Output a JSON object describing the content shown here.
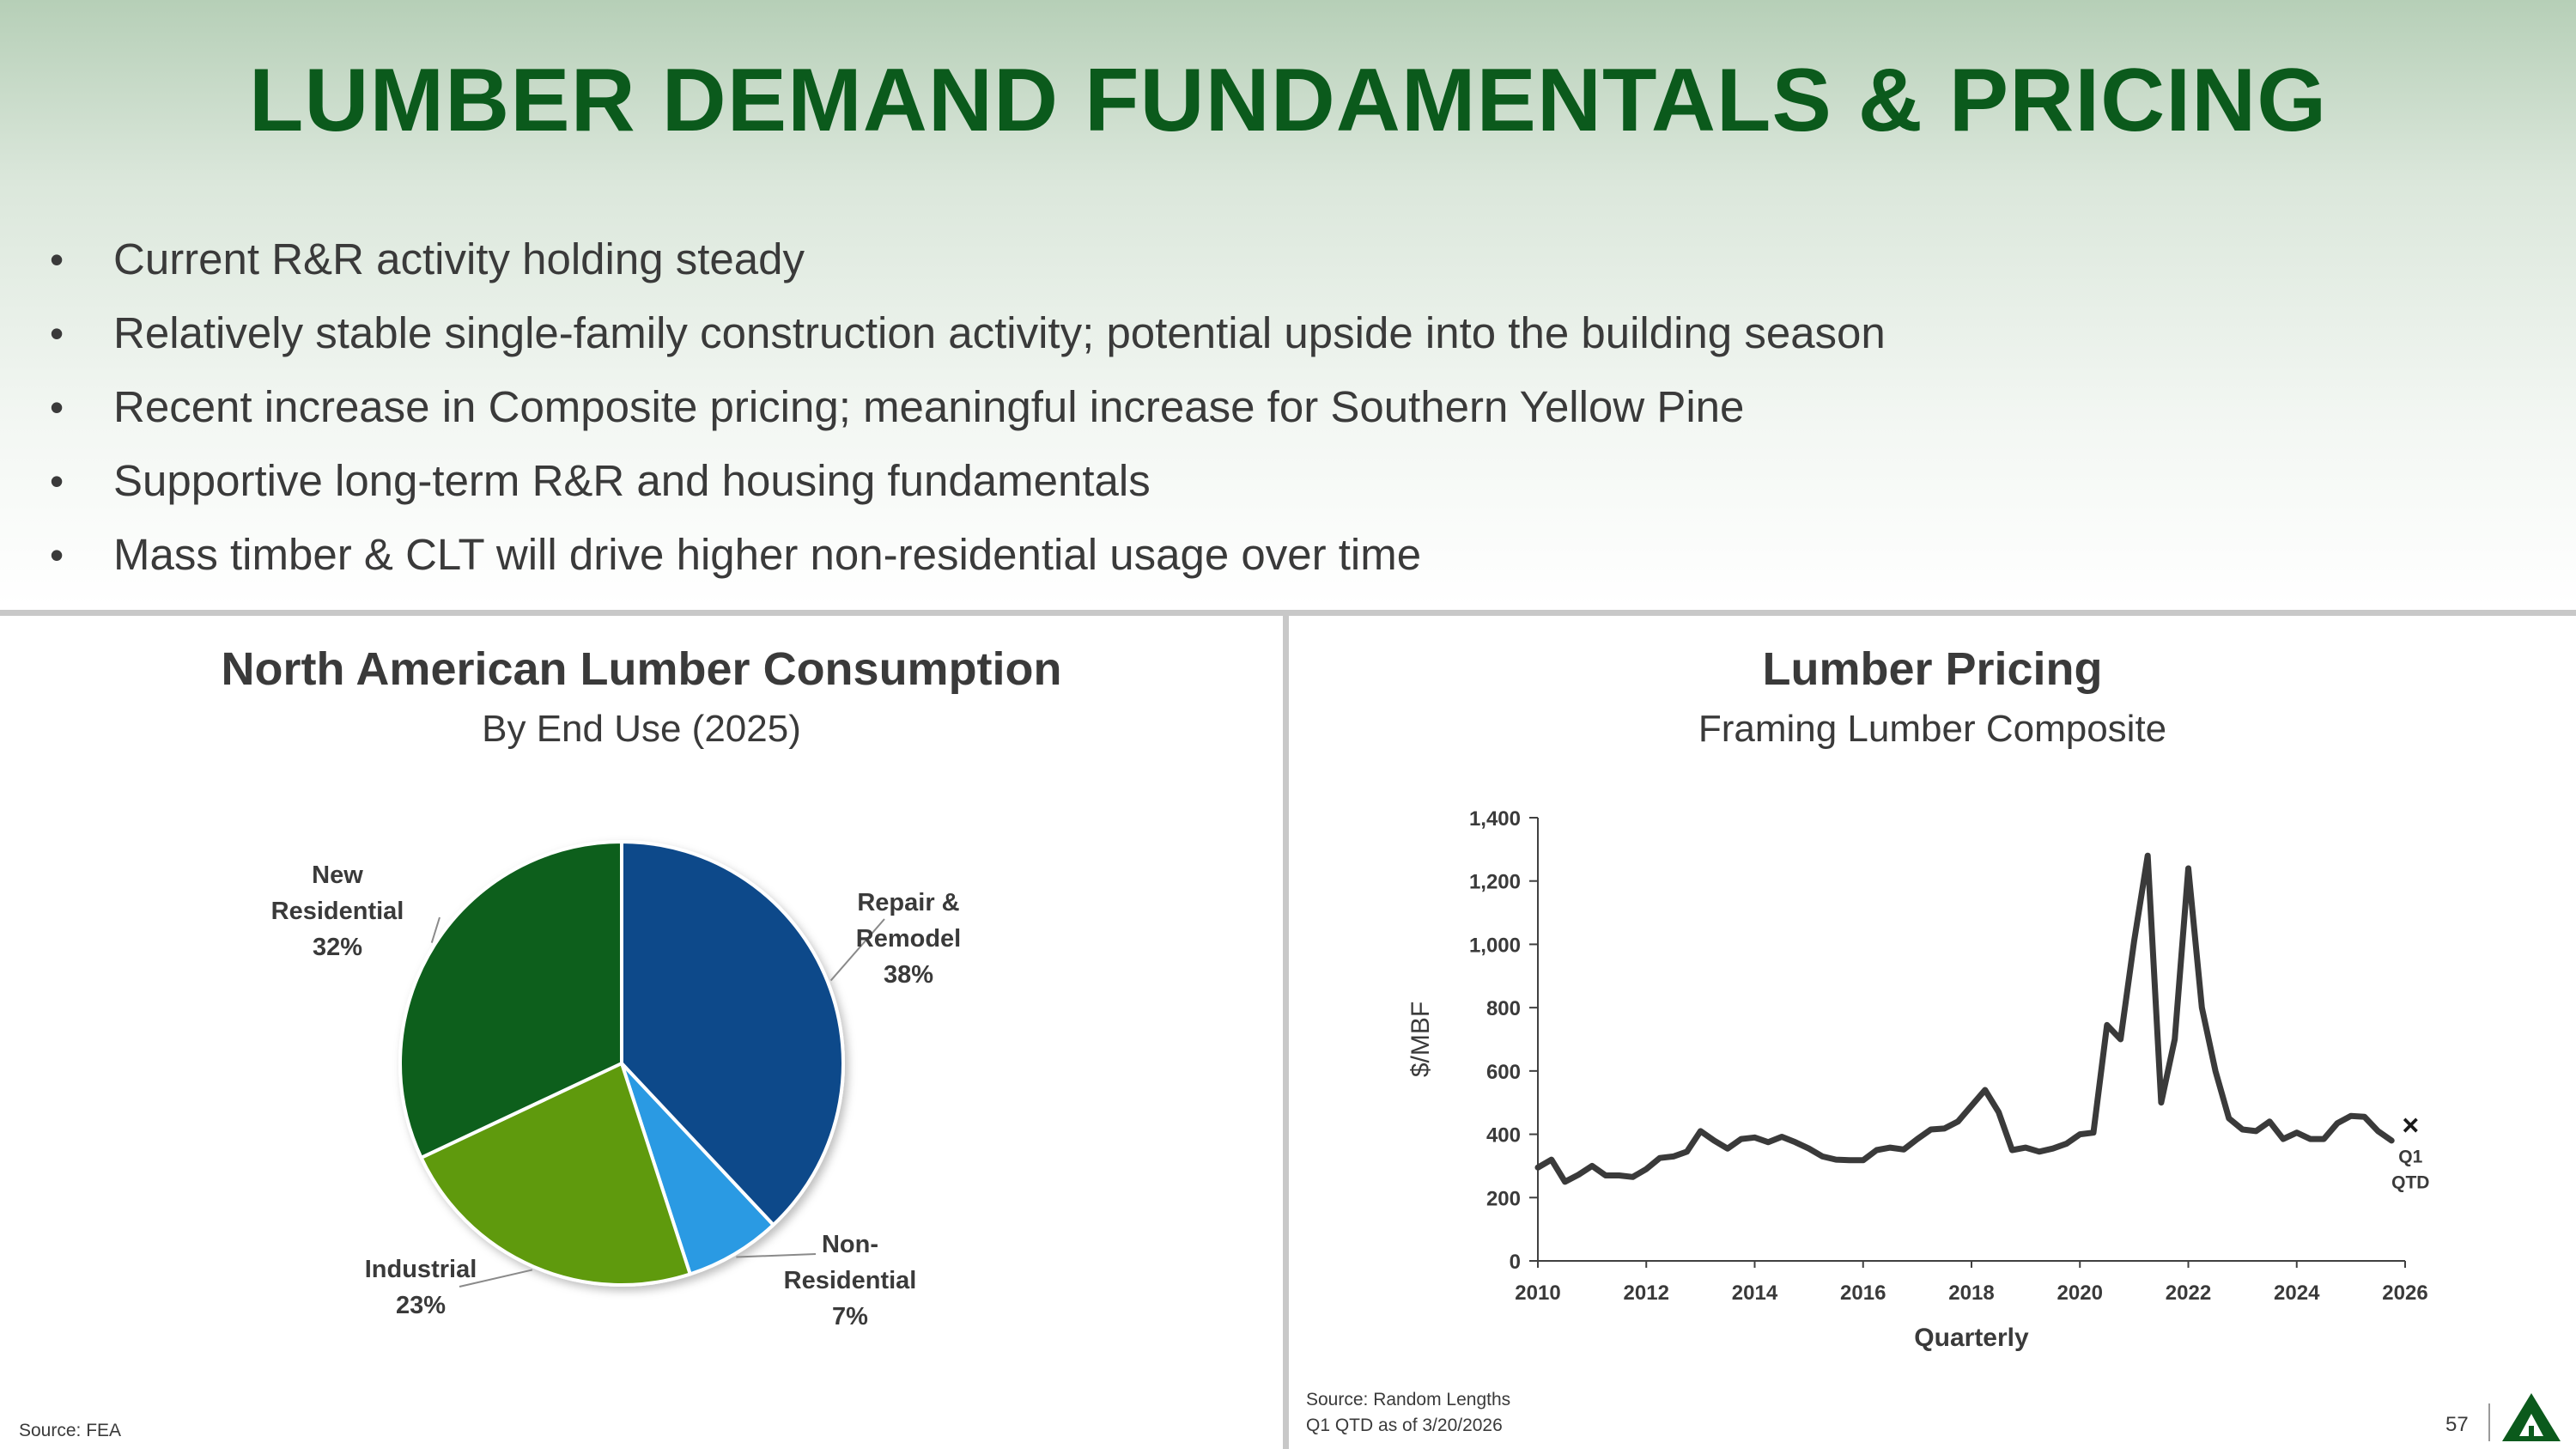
{
  "title": "LUMBER DEMAND FUNDAMENTALS & PRICING",
  "bullets": [
    "Current R&R activity holding steady",
    "Relatively stable single-family construction activity; potential upside into the building season",
    "Recent increase in Composite pricing; meaningful increase for Southern Yellow Pine",
    "Supportive long-term R&R and housing fundamentals",
    "Mass timber & CLT will drive higher non-residential usage over time"
  ],
  "bullet_symbol": "•",
  "left_panel": {
    "title": "North American Lumber Consumption",
    "subtitle": "By End Use (2025)",
    "source": "Source: FEA"
  },
  "right_panel": {
    "title": "Lumber Pricing",
    "subtitle": "Framing Lumber Composite",
    "source_line1": "Source: Random Lengths",
    "source_line2": "Q1 QTD as of 3/20/2026"
  },
  "page_number": "57",
  "logo_icon": "company-logo-triangle",
  "colors": {
    "title_green": "#0b5a1c",
    "repair_remodel": "#0f4a8a",
    "non_residential": "#2a9ae3",
    "industrial": "#5e9a10",
    "new_residential": "#0b5e1a",
    "line": "#3a3a3a"
  },
  "chart_data": [
    {
      "type": "pie",
      "title": "North American Lumber Consumption",
      "subtitle": "By End Use (2025)",
      "slices": [
        {
          "label_lines": [
            "Repair &",
            "Remodel"
          ],
          "value": 38,
          "display": "38%",
          "color": "#0f4a8a"
        },
        {
          "label_lines": [
            "Non-",
            "Residential"
          ],
          "value": 7,
          "display": "7%",
          "color": "#2a9ae3"
        },
        {
          "label_lines": [
            "Industrial"
          ],
          "value": 23,
          "display": "23%",
          "color": "#5e9a10"
        },
        {
          "label_lines": [
            "New",
            "Residential"
          ],
          "value": 32,
          "display": "32%",
          "color": "#0b5e1a"
        }
      ]
    },
    {
      "type": "line",
      "title": "Lumber Pricing",
      "subtitle": "Framing Lumber Composite",
      "xlabel": "Quarterly",
      "ylabel": "$/MBF",
      "xlim": [
        2010,
        2026
      ],
      "ylim": [
        0,
        1400
      ],
      "xticks": [
        2010,
        2012,
        2014,
        2016,
        2018,
        2020,
        2022,
        2024,
        2026
      ],
      "yticks": [
        0,
        200,
        400,
        600,
        800,
        1000,
        1200,
        1400
      ],
      "ytick_labels": [
        "0",
        "200",
        "400",
        "600",
        "800",
        "1,000",
        "1,200",
        "1,400"
      ],
      "series": [
        {
          "x": [
            2010.0,
            2010.25,
            2010.5,
            2010.75,
            2011.0,
            2011.25,
            2011.5,
            2011.75,
            2012.0,
            2012.25,
            2012.5,
            2012.75,
            2013.0,
            2013.25,
            2013.5,
            2013.75,
            2014.0,
            2014.25,
            2014.5,
            2014.75,
            2015.0,
            2015.25,
            2015.5,
            2015.75,
            2016.0,
            2016.25,
            2016.5,
            2016.75,
            2017.0,
            2017.25,
            2017.5,
            2017.75,
            2018.0,
            2018.25,
            2018.5,
            2018.75,
            2019.0,
            2019.25,
            2019.5,
            2019.75,
            2020.0,
            2020.25,
            2020.5,
            2020.75,
            2021.0,
            2021.25,
            2021.5,
            2021.75,
            2022.0,
            2022.25,
            2022.5,
            2022.75,
            2023.0,
            2023.25,
            2023.5,
            2023.75,
            2024.0,
            2024.25,
            2024.5,
            2024.75,
            2025.0,
            2025.25,
            2025.5,
            2025.75
          ],
          "y": [
            295,
            320,
            250,
            272,
            300,
            270,
            270,
            265,
            290,
            325,
            330,
            345,
            410,
            380,
            355,
            385,
            390,
            375,
            392,
            375,
            355,
            330,
            320,
            318,
            318,
            350,
            358,
            352,
            385,
            415,
            418,
            440,
            490,
            540,
            470,
            350,
            358,
            345,
            355,
            370,
            400,
            405,
            745,
            700,
            1010,
            1280,
            500,
            700,
            1240,
            800,
            600,
            450,
            415,
            410,
            440,
            385,
            405,
            385,
            385,
            435,
            458,
            455,
            410,
            380
          ]
        }
      ],
      "marker": {
        "x": 2026.1,
        "y": 430,
        "symbol": "×",
        "label_lines": [
          "Q1",
          "QTD"
        ]
      }
    }
  ]
}
